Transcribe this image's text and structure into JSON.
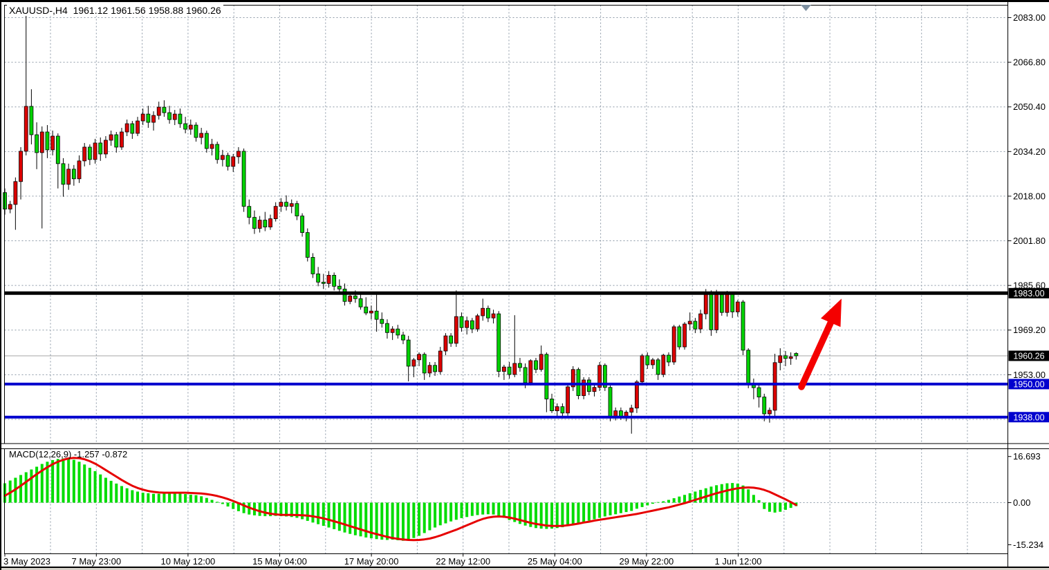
{
  "window": {
    "title_line": "XAUUSD-,H4  1961.12 1961.56 1958.88 1960.26",
    "symbol": "XAUUSD-",
    "timeframe": "H4",
    "current_bar": {
      "open": "1961.12",
      "high": "1961.56",
      "low": "1958.88",
      "close": "1960.26"
    }
  },
  "chart_data": {
    "type": "candlestick",
    "title": "XAUUSD- H4 chart with MACD",
    "price_axis_labels": [
      "2083.00",
      "2066.80",
      "2050.40",
      "2034.20",
      "2018.00",
      "2001.80",
      "1985.60",
      "1969.20",
      "1953.00"
    ],
    "price_axis_badges": [
      {
        "text": "1983.00",
        "price": 1983.0,
        "bg": "#000000"
      },
      {
        "text": "1960.26",
        "price": 1960.26,
        "bg": "#000000"
      },
      {
        "text": "1950.00",
        "price": 1950.0,
        "bg": "#0101CE"
      },
      {
        "text": "1938.00",
        "price": 1938.0,
        "bg": "#0101CE"
      }
    ],
    "time_axis_labels": [
      "3 May 2023",
      "7 May 23:00",
      "10 May 12:00",
      "15 May 04:00",
      "17 May 20:00",
      "22 May 12:00",
      "25 May 04:00",
      "29 May 22:00",
      "1 Jun 12:00"
    ],
    "levels": [
      {
        "name": "resistance",
        "price": 1983.0,
        "color": "#000000",
        "thickness": 5
      },
      {
        "name": "support-upper",
        "price": 1950.0,
        "color": "#0101CE",
        "thickness": 4
      },
      {
        "name": "support-lower",
        "price": 1938.0,
        "color": "#0101CE",
        "thickness": 4
      }
    ],
    "current_price": 1960.26,
    "candles_ohlc": [
      [
        2019.5,
        2021,
        2011.5,
        2013.5
      ],
      [
        2013.5,
        2016.5,
        2012,
        2015.2
      ],
      [
        2015.2,
        2025,
        2006,
        2023.5
      ],
      [
        2023.5,
        2036,
        2017,
        2034.5
      ],
      [
        2034.5,
        2084.5,
        2033,
        2050.8
      ],
      [
        2050.8,
        2057,
        2037,
        2040.5
      ],
      [
        2040.5,
        2045,
        2028,
        2034
      ],
      [
        2034,
        2043.5,
        2006.5,
        2041.5
      ],
      [
        2041.5,
        2044,
        2032,
        2035
      ],
      [
        2035,
        2042,
        2033,
        2040
      ],
      [
        2040,
        2041,
        2021,
        2030
      ],
      [
        2030,
        2032,
        2018,
        2022.5
      ],
      [
        2022.5,
        2030,
        2020.5,
        2028
      ],
      [
        2028,
        2029.5,
        2022,
        2024.5
      ],
      [
        2024.5,
        2033,
        2023,
        2031
      ],
      [
        2031,
        2037.5,
        2029,
        2036
      ],
      [
        2036,
        2037,
        2029.5,
        2031.5
      ],
      [
        2031.5,
        2039,
        2030,
        2037.5
      ],
      [
        2037.5,
        2039.5,
        2031,
        2033.5
      ],
      [
        2033.5,
        2040,
        2032,
        2038.5
      ],
      [
        2038.5,
        2042,
        2036.5,
        2040.5
      ],
      [
        2040.5,
        2041.5,
        2034,
        2036
      ],
      [
        2036,
        2043,
        2035,
        2041.5
      ],
      [
        2041.5,
        2046,
        2040,
        2044.5
      ],
      [
        2044.5,
        2045.5,
        2039,
        2041
      ],
      [
        2041,
        2047,
        2040,
        2045.5
      ],
      [
        2045.5,
        2050,
        2044,
        2048
      ],
      [
        2048,
        2051,
        2043,
        2045
      ],
      [
        2045,
        2049,
        2042,
        2047.5
      ],
      [
        2047.5,
        2052.5,
        2046,
        2050.5
      ],
      [
        2050.5,
        2053,
        2047,
        2048.5
      ],
      [
        2048.5,
        2051,
        2044.5,
        2046
      ],
      [
        2046,
        2049.5,
        2044,
        2048
      ],
      [
        2048,
        2050,
        2043,
        2044.5
      ],
      [
        2044.5,
        2047,
        2041,
        2042.5
      ],
      [
        2042.5,
        2046,
        2040.5,
        2044
      ],
      [
        2044,
        2045,
        2038,
        2039.5
      ],
      [
        2039.5,
        2043,
        2037,
        2041
      ],
      [
        2041,
        2042,
        2034,
        2035.5
      ],
      [
        2035.5,
        2039,
        2033,
        2037
      ],
      [
        2037,
        2038,
        2030,
        2031.5
      ],
      [
        2031.5,
        2035,
        2029,
        2033
      ],
      [
        2033,
        2034,
        2027.5,
        2029
      ],
      [
        2029,
        2033.5,
        2027,
        2032.5
      ],
      [
        2032.5,
        2036,
        2030,
        2034.5
      ],
      [
        2034.5,
        2035.5,
        2012.5,
        2014.5
      ],
      [
        2014.5,
        2017,
        2008,
        2010.5
      ],
      [
        2010.5,
        2013,
        2004.5,
        2006.5
      ],
      [
        2006.5,
        2011,
        2005,
        2009.5
      ],
      [
        2009.5,
        2012.5,
        2005.5,
        2007
      ],
      [
        2007,
        2011.5,
        2006,
        2010
      ],
      [
        2010,
        2016,
        2009,
        2014.5
      ],
      [
        2014.5,
        2017.5,
        2012.5,
        2016
      ],
      [
        2016,
        2018.5,
        2013,
        2014.5
      ],
      [
        2014.5,
        2017,
        2012,
        2015.5
      ],
      [
        2015.5,
        2016.5,
        2009.5,
        2011
      ],
      [
        2011,
        2012,
        2003.5,
        2005
      ],
      [
        2005,
        2006.5,
        1994.5,
        1996
      ],
      [
        1996,
        1997.5,
        1988.5,
        1990
      ],
      [
        1990,
        1992.5,
        1985.5,
        1987
      ],
      [
        1987,
        1990,
        1984.5,
        1986.5
      ],
      [
        1986.5,
        1991,
        1985,
        1989.5
      ],
      [
        1989.5,
        1990.5,
        1984,
        1985.5
      ],
      [
        1985.5,
        1988,
        1983,
        1984.5
      ],
      [
        1984.5,
        1986.5,
        1978.5,
        1980
      ],
      [
        1980,
        1983.5,
        1979,
        1982
      ],
      [
        1982,
        1984,
        1979.5,
        1981
      ],
      [
        1981,
        1982.5,
        1977,
        1978
      ],
      [
        1978,
        1981.5,
        1975,
        1975.8
      ],
      [
        1975.8,
        1978.5,
        1973.5,
        1976.5
      ],
      [
        1976.5,
        1982.5,
        1969,
        1973.5
      ],
      [
        1973.5,
        1976,
        1970.5,
        1972
      ],
      [
        1972,
        1973.5,
        1966.5,
        1968.7
      ],
      [
        1968.7,
        1971,
        1966,
        1970
      ],
      [
        1970,
        1971.5,
        1966.5,
        1967.8
      ],
      [
        1967.8,
        1969,
        1964.5,
        1966
      ],
      [
        1966,
        1967.5,
        1951,
        1956.5
      ],
      [
        1956.5,
        1959.5,
        1952.5,
        1958.8
      ],
      [
        1958.8,
        1961.5,
        1956.5,
        1960.8
      ],
      [
        1960.8,
        1961.5,
        1951.5,
        1954
      ],
      [
        1954,
        1958,
        1952.5,
        1956.8
      ],
      [
        1956.8,
        1958,
        1953,
        1954.5
      ],
      [
        1954.5,
        1963.5,
        1953.5,
        1962
      ],
      [
        1962,
        1968.5,
        1960.5,
        1967.5
      ],
      [
        1967.5,
        1968.5,
        1963.5,
        1964.8
      ],
      [
        1964.8,
        1984,
        1963.5,
        1974.5
      ],
      [
        1974.5,
        1976,
        1969,
        1970.5
      ],
      [
        1970.5,
        1974.5,
        1968,
        1973
      ],
      [
        1973,
        1974,
        1968.5,
        1970
      ],
      [
        1970,
        1975.5,
        1969,
        1974.8
      ],
      [
        1974.8,
        1981,
        1973,
        1977.5
      ],
      [
        1977.5,
        1978.5,
        1972.5,
        1974
      ],
      [
        1974,
        1977,
        1972,
        1975.5
      ],
      [
        1975.5,
        1976.5,
        1952.5,
        1954.6
      ],
      [
        1954.6,
        1957,
        1951.5,
        1956.2
      ],
      [
        1956.2,
        1958,
        1952,
        1953.5
      ],
      [
        1953.5,
        1975,
        1952.5,
        1957.5
      ],
      [
        1957.5,
        1959.5,
        1954.5,
        1956
      ],
      [
        1956,
        1957.5,
        1948.5,
        1950.5
      ],
      [
        1950.5,
        1959,
        1949.5,
        1958.5
      ],
      [
        1958.5,
        1959.5,
        1954,
        1955.3
      ],
      [
        1955.3,
        1964,
        1954.5,
        1960.8
      ],
      [
        1960.8,
        1961.5,
        1939.8,
        1944.6
      ],
      [
        1944.6,
        1946.5,
        1939.5,
        1940.3
      ],
      [
        1940.3,
        1943,
        1938.3,
        1941.8
      ],
      [
        1941.8,
        1943,
        1937.5,
        1939.5
      ],
      [
        1939.5,
        1950,
        1938.5,
        1949
      ],
      [
        1949,
        1956.5,
        1947.5,
        1955.3
      ],
      [
        1955.3,
        1956,
        1944.5,
        1945.8
      ],
      [
        1945.8,
        1952.5,
        1944.5,
        1951.5
      ],
      [
        1951.5,
        1952.5,
        1946,
        1947.3
      ],
      [
        1947.3,
        1950,
        1945.5,
        1948.8
      ],
      [
        1948.8,
        1958,
        1947.5,
        1956.8
      ],
      [
        1956.8,
        1957.5,
        1947.5,
        1948.8
      ],
      [
        1948.8,
        1949.5,
        1936.5,
        1938
      ],
      [
        1938,
        1941.5,
        1936.8,
        1940.3
      ],
      [
        1940.3,
        1941.5,
        1937,
        1938.3
      ],
      [
        1938.3,
        1940.5,
        1936.5,
        1939.8
      ],
      [
        1939.8,
        1942.5,
        1932,
        1941.3
      ],
      [
        1941.3,
        1951.5,
        1939.5,
        1950.8
      ],
      [
        1950.8,
        1961,
        1949.5,
        1960.3
      ],
      [
        1960.3,
        1961.5,
        1955.5,
        1957
      ],
      [
        1957,
        1959.5,
        1955.5,
        1958.8
      ],
      [
        1958.8,
        1959.5,
        1951.5,
        1953.5
      ],
      [
        1953.5,
        1961,
        1952.5,
        1960.5
      ],
      [
        1960.5,
        1961.5,
        1956.5,
        1958
      ],
      [
        1958,
        1971.5,
        1957,
        1970.8
      ],
      [
        1970.8,
        1971.5,
        1962.5,
        1963.5
      ],
      [
        1963.5,
        1972.5,
        1962.5,
        1971.8
      ],
      [
        1971.8,
        1976,
        1969.5,
        1972.8
      ],
      [
        1972.8,
        1974,
        1968.5,
        1970
      ],
      [
        1970,
        1977,
        1968.5,
        1975.5
      ],
      [
        1975.5,
        1984.5,
        1973.5,
        1982.8
      ],
      [
        1982.8,
        1984,
        1967.5,
        1969.7
      ],
      [
        1969.7,
        1984.2,
        1968.5,
        1982.5
      ],
      [
        1982.5,
        1983,
        1974.8,
        1976
      ],
      [
        1976,
        1983.8,
        1974.5,
        1982.6
      ],
      [
        1982.6,
        1983.5,
        1974,
        1976.2
      ],
      [
        1976.2,
        1980.5,
        1974.5,
        1979.8
      ],
      [
        1979.8,
        1980.5,
        1960.5,
        1962.3
      ],
      [
        1962.3,
        1963,
        1948.5,
        1950.3
      ],
      [
        1950.3,
        1952,
        1944.5,
        1948.7
      ],
      [
        1948.7,
        1950,
        1941.5,
        1945.3
      ],
      [
        1945.3,
        1946.5,
        1936.5,
        1939.2
      ],
      [
        1939.2,
        1941.5,
        1936,
        1940.5
      ],
      [
        1940.5,
        1961,
        1938,
        1957.8
      ],
      [
        1957.8,
        1963,
        1955,
        1960.3
      ],
      [
        1960.3,
        1962,
        1956.5,
        1959.3
      ],
      [
        1959.3,
        1961.5,
        1957,
        1959.9
      ],
      [
        1961.12,
        1961.56,
        1958.88,
        1960.26
      ]
    ],
    "macd": {
      "label_line": "MACD(12,26,9) -1.257 -0.872",
      "name": "MACD",
      "params": "12,26,9",
      "macd_value": "-1.257",
      "signal_value": "-0.872",
      "axis_labels": [
        "16.693",
        "0.00",
        "-15.234"
      ],
      "axis_values": [
        16.693,
        0,
        -15.234
      ],
      "histogram": [
        7.0,
        8.0,
        9.0,
        10.0,
        11.0,
        12.0,
        13.0,
        14.0,
        14.8,
        15.4,
        15.8,
        16.0,
        15.9,
        15.5,
        14.8,
        13.8,
        12.6,
        11.4,
        10.2,
        9.0,
        7.9,
        6.9,
        6.0,
        5.2,
        4.5,
        4.0,
        3.6,
        3.4,
        3.2,
        3.2,
        3.3,
        3.4,
        3.4,
        3.3,
        3.1,
        2.9,
        2.7,
        2.3,
        1.7,
        1.0,
        0.3,
        -0.5,
        -1.4,
        -2.3,
        -3.1,
        -3.8,
        -4.3,
        -4.6,
        -4.8,
        -4.9,
        -4.9,
        -4.8,
        -4.9,
        -5.0,
        -5.2,
        -5.5,
        -6.0,
        -6.6,
        -7.2,
        -7.8,
        -8.4,
        -9.0,
        -9.6,
        -10.2,
        -10.8,
        -11.3,
        -11.8,
        -12.2,
        -12.6,
        -12.9,
        -13.2,
        -13.4,
        -13.5,
        -13.4,
        -13.6,
        -13.8,
        -13.5,
        -12.8,
        -12.0,
        -11.0,
        -10.0,
        -9.0,
        -8.2,
        -7.5,
        -6.8,
        -6.2,
        -5.6,
        -5.2,
        -4.8,
        -4.5,
        -4.3,
        -4.2,
        -4.3,
        -4.8,
        -5.5,
        -6.3,
        -7.0,
        -7.7,
        -8.3,
        -8.8,
        -9.2,
        -9.4,
        -9.5,
        -9.4,
        -9.2,
        -8.9,
        -8.5,
        -8.0,
        -7.5,
        -7.0,
        -6.5,
        -6.0,
        -5.5,
        -5.0,
        -4.6,
        -4.2,
        -3.8,
        -3.4,
        -3.0,
        -2.2,
        -1.6,
        -1.0,
        -0.4,
        0.2,
        0.5,
        1.0,
        1.6,
        2.2,
        2.8,
        3.4,
        4.0,
        4.6,
        5.2,
        5.8,
        6.3,
        6.7,
        7.0,
        7.1,
        6.9,
        6.2,
        4.8,
        2.8,
        0.9,
        -2.3,
        -3.3,
        -3.6,
        -3.3,
        -2.6,
        -1.9,
        -1.257
      ],
      "signal": [
        2.5,
        3.6,
        4.8,
        6.1,
        7.5,
        8.9,
        10.3,
        11.6,
        12.8,
        13.9,
        14.8,
        15.5,
        16.0,
        16.2,
        16.1,
        15.7,
        15.0,
        14.1,
        13.0,
        11.8,
        10.6,
        9.4,
        8.2,
        7.1,
        6.1,
        5.3,
        4.7,
        4.2,
        3.9,
        3.7,
        3.6,
        3.6,
        3.6,
        3.6,
        3.6,
        3.5,
        3.4,
        3.3,
        3.1,
        2.8,
        2.4,
        1.9,
        1.3,
        0.6,
        -0.2,
        -1.0,
        -1.8,
        -2.5,
        -3.1,
        -3.6,
        -4.0,
        -4.25,
        -4.4,
        -4.45,
        -4.45,
        -4.5,
        -4.55,
        -4.7,
        -4.95,
        -5.3,
        -5.7,
        -6.2,
        -6.75,
        -7.3,
        -7.9,
        -8.5,
        -9.1,
        -9.7,
        -10.3,
        -10.9,
        -11.4,
        -11.9,
        -12.4,
        -12.8,
        -13.1,
        -13.35,
        -13.5,
        -13.55,
        -13.5,
        -13.3,
        -13.0,
        -12.5,
        -11.9,
        -11.2,
        -10.5,
        -9.8,
        -9.0,
        -8.2,
        -7.4,
        -6.6,
        -5.9,
        -5.4,
        -5.1,
        -5.0,
        -5.1,
        -5.4,
        -5.8,
        -6.3,
        -6.8,
        -7.3,
        -7.7,
        -8.0,
        -8.3,
        -8.4,
        -8.45,
        -8.4,
        -8.2,
        -7.9,
        -7.6,
        -7.2,
        -6.9,
        -6.5,
        -6.2,
        -5.9,
        -5.6,
        -5.3,
        -5.0,
        -4.7,
        -4.4,
        -4.1,
        -3.7,
        -3.3,
        -2.9,
        -2.5,
        -2.1,
        -1.7,
        -1.2,
        -0.7,
        -0.2,
        0.4,
        1.0,
        1.6,
        2.2,
        2.8,
        3.4,
        3.9,
        4.4,
        4.8,
        5.2,
        5.4,
        5.5,
        5.4,
        5.1,
        4.6,
        3.9,
        3.0,
        2.1,
        1.2,
        0.2,
        -0.872
      ]
    },
    "annotations": {
      "arrow": {
        "type": "up-arrow",
        "color": "#F40000",
        "from_price": 1949,
        "to_price": 1981
      },
      "shift_marker": {
        "color": "#7C8FA0"
      }
    },
    "colors": {
      "bull": "#DB0000",
      "bear": "#00D200",
      "wick": "#000000",
      "grid": "#8A97A5",
      "hist": "#00DC00",
      "signal_line": "#E60000",
      "current_price_line": "#A6A6A6",
      "background": "#FFFFFF",
      "badge_text": "#FFFFFF"
    }
  }
}
